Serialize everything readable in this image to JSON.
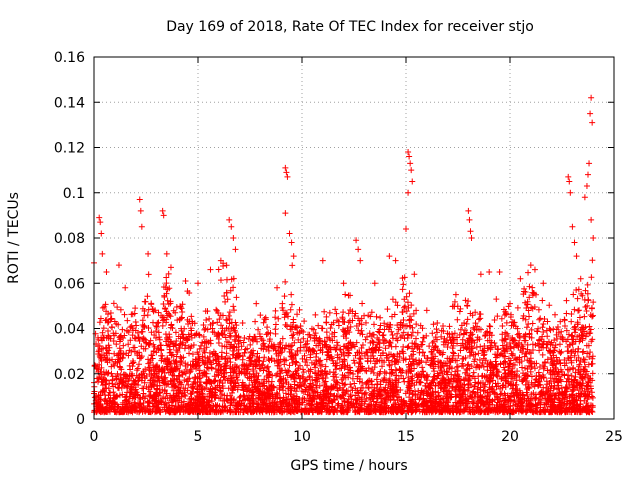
{
  "chart_data": {
    "type": "scatter",
    "title": "Day 169 of 2018, Rate Of TEC Index for receiver stjo",
    "xlabel": "GPS time / hours",
    "ylabel": "ROTI / TECUs",
    "xlim": [
      0,
      25
    ],
    "ylim": [
      0,
      0.16
    ],
    "xticks": [
      0,
      5,
      10,
      15,
      20,
      25
    ],
    "xtick_labels": [
      "0",
      "5",
      "10",
      "15",
      "20",
      "25"
    ],
    "yticks": [
      0,
      0.02,
      0.04,
      0.06,
      0.08,
      0.1,
      0.12,
      0.14,
      0.16
    ],
    "ytick_labels": [
      "0",
      "0.02",
      "0.04",
      "0.06",
      "0.08",
      "0.1",
      "0.12",
      "0.14",
      "0.16"
    ],
    "grid": true,
    "marker": "plus",
    "series": [
      {
        "name": "ROTI",
        "color": "#ff0000",
        "points": [
          [
            0.0,
            0.069
          ],
          [
            0.25,
            0.089
          ],
          [
            0.3,
            0.087
          ],
          [
            0.35,
            0.082
          ],
          [
            0.4,
            0.073
          ],
          [
            0.6,
            0.065
          ],
          [
            1.2,
            0.068
          ],
          [
            1.5,
            0.058
          ],
          [
            2.2,
            0.097
          ],
          [
            2.25,
            0.092
          ],
          [
            2.3,
            0.085
          ],
          [
            2.6,
            0.073
          ],
          [
            3.3,
            0.092
          ],
          [
            3.35,
            0.09
          ],
          [
            3.5,
            0.073
          ],
          [
            3.7,
            0.067
          ],
          [
            4.4,
            0.061
          ],
          [
            5.0,
            0.06
          ],
          [
            5.6,
            0.066
          ],
          [
            6.1,
            0.07
          ],
          [
            6.5,
            0.088
          ],
          [
            6.6,
            0.085
          ],
          [
            6.7,
            0.08
          ],
          [
            6.8,
            0.075
          ],
          [
            7.8,
            0.051
          ],
          [
            8.8,
            0.058
          ],
          [
            9.2,
            0.111
          ],
          [
            9.25,
            0.109
          ],
          [
            9.3,
            0.107
          ],
          [
            9.2,
            0.091
          ],
          [
            9.4,
            0.082
          ],
          [
            9.5,
            0.078
          ],
          [
            9.6,
            0.072
          ],
          [
            11.0,
            0.07
          ],
          [
            12.0,
            0.06
          ],
          [
            12.6,
            0.079
          ],
          [
            12.7,
            0.075
          ],
          [
            12.8,
            0.07
          ],
          [
            13.5,
            0.06
          ],
          [
            14.2,
            0.072
          ],
          [
            14.5,
            0.07
          ],
          [
            15.1,
            0.118
          ],
          [
            15.15,
            0.116
          ],
          [
            15.2,
            0.113
          ],
          [
            15.25,
            0.11
          ],
          [
            15.3,
            0.105
          ],
          [
            15.1,
            0.1
          ],
          [
            15.0,
            0.084
          ],
          [
            15.4,
            0.064
          ],
          [
            16.0,
            0.048
          ],
          [
            17.4,
            0.055
          ],
          [
            18.0,
            0.092
          ],
          [
            18.05,
            0.088
          ],
          [
            18.1,
            0.083
          ],
          [
            18.15,
            0.08
          ],
          [
            18.6,
            0.064
          ],
          [
            19.0,
            0.065
          ],
          [
            19.5,
            0.065
          ],
          [
            20.0,
            0.051
          ],
          [
            20.5,
            0.062
          ],
          [
            21.0,
            0.068
          ],
          [
            21.2,
            0.066
          ],
          [
            21.6,
            0.06
          ],
          [
            22.8,
            0.107
          ],
          [
            22.85,
            0.105
          ],
          [
            22.9,
            0.1
          ],
          [
            23.0,
            0.085
          ],
          [
            23.1,
            0.078
          ],
          [
            23.2,
            0.072
          ],
          [
            23.4,
            0.062
          ],
          [
            23.6,
            0.098
          ],
          [
            23.7,
            0.103
          ],
          [
            23.75,
            0.108
          ],
          [
            23.8,
            0.113
          ],
          [
            23.85,
            0.135
          ],
          [
            23.9,
            0.142
          ],
          [
            23.95,
            0.131
          ],
          [
            23.9,
            0.088
          ],
          [
            24.0,
            0.08
          ]
        ],
        "envelope": {
          "note": "dense band of ROTI samples between the floor and the upper values below",
          "floor": 0.003,
          "upper": [
            [
              0.0,
              0.03
            ],
            [
              0.5,
              0.047
            ],
            [
              1.0,
              0.044
            ],
            [
              1.5,
              0.04
            ],
            [
              2.0,
              0.044
            ],
            [
              2.5,
              0.055
            ],
            [
              3.0,
              0.045
            ],
            [
              3.5,
              0.058
            ],
            [
              4.0,
              0.045
            ],
            [
              4.5,
              0.05
            ],
            [
              5.0,
              0.035
            ],
            [
              5.5,
              0.045
            ],
            [
              6.0,
              0.055
            ],
            [
              6.5,
              0.062
            ],
            [
              7.0,
              0.042
            ],
            [
              7.5,
              0.037
            ],
            [
              8.0,
              0.04
            ],
            [
              8.5,
              0.04
            ],
            [
              9.0,
              0.045
            ],
            [
              9.5,
              0.062
            ],
            [
              10.0,
              0.04
            ],
            [
              10.5,
              0.042
            ],
            [
              11.0,
              0.042
            ],
            [
              11.5,
              0.04
            ],
            [
              12.0,
              0.045
            ],
            [
              12.5,
              0.055
            ],
            [
              13.0,
              0.042
            ],
            [
              13.5,
              0.045
            ],
            [
              14.0,
              0.042
            ],
            [
              14.5,
              0.052
            ],
            [
              15.0,
              0.058
            ],
            [
              15.5,
              0.042
            ],
            [
              16.0,
              0.035
            ],
            [
              16.5,
              0.038
            ],
            [
              17.0,
              0.042
            ],
            [
              17.5,
              0.045
            ],
            [
              18.0,
              0.052
            ],
            [
              18.5,
              0.045
            ],
            [
              19.0,
              0.042
            ],
            [
              19.5,
              0.045
            ],
            [
              20.0,
              0.04
            ],
            [
              20.5,
              0.055
            ],
            [
              21.0,
              0.058
            ],
            [
              21.5,
              0.05
            ],
            [
              22.0,
              0.04
            ],
            [
              22.5,
              0.042
            ],
            [
              23.0,
              0.048
            ],
            [
              23.5,
              0.055
            ],
            [
              24.0,
              0.06
            ]
          ]
        }
      }
    ]
  }
}
